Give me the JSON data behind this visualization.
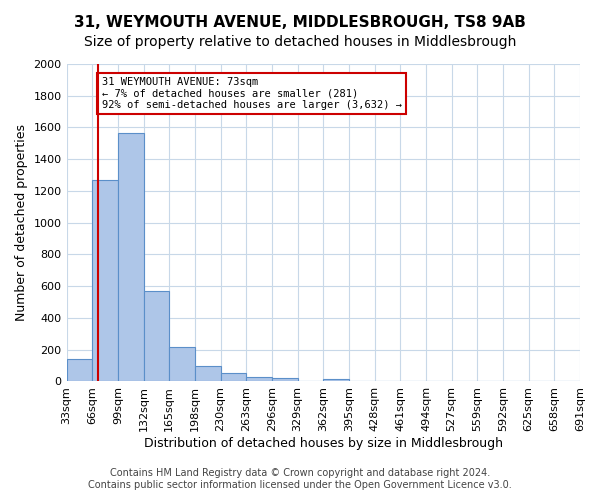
{
  "title": "31, WEYMOUTH AVENUE, MIDDLESBROUGH, TS8 9AB",
  "subtitle": "Size of property relative to detached houses in Middlesbrough",
  "xlabel": "Distribution of detached houses by size in Middlesbrough",
  "ylabel": "Number of detached properties",
  "bar_values": [
    140,
    1270,
    1565,
    570,
    220,
    95,
    55,
    25,
    20,
    5,
    15,
    5,
    0,
    0,
    0,
    0,
    0,
    0,
    0,
    0
  ],
  "bin_labels": [
    "33sqm",
    "66sqm",
    "99sqm",
    "132sqm",
    "165sqm",
    "198sqm",
    "230sqm",
    "263sqm",
    "296sqm",
    "329sqm",
    "362sqm",
    "395sqm",
    "428sqm",
    "461sqm",
    "494sqm",
    "527sqm",
    "559sqm",
    "592sqm",
    "625sqm",
    "658sqm",
    "691sqm"
  ],
  "bar_color": "#aec6e8",
  "bar_edge_color": "#5b8fc9",
  "vline_x": 1.07,
  "property_sqm": 73,
  "annotation_text": "31 WEYMOUTH AVENUE: 73sqm\n← 7% of detached houses are smaller (281)\n92% of semi-detached houses are larger (3,632) →",
  "annotation_box_color": "#ffffff",
  "annotation_box_edge": "#cc0000",
  "vline_color": "#cc0000",
  "ylim": [
    0,
    2000
  ],
  "yticks": [
    0,
    200,
    400,
    600,
    800,
    1000,
    1200,
    1400,
    1600,
    1800,
    2000
  ],
  "footer_line1": "Contains HM Land Registry data © Crown copyright and database right 2024.",
  "footer_line2": "Contains public sector information licensed under the Open Government Licence v3.0.",
  "bg_color": "#ffffff",
  "grid_color": "#c8d8e8",
  "title_fontsize": 11,
  "subtitle_fontsize": 10,
  "axis_label_fontsize": 9,
  "tick_fontsize": 8,
  "footer_fontsize": 7
}
